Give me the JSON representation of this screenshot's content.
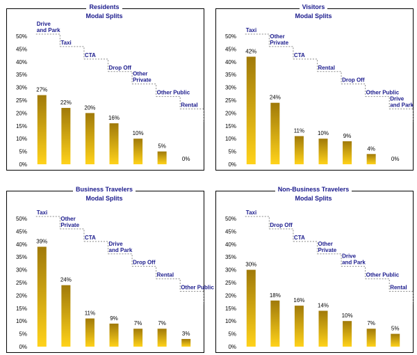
{
  "colors": {
    "bar_top": "#a07a0a",
    "bar_bottom": "#ffd21a",
    "title": "#1a1a8c",
    "step": "#888888"
  },
  "panels": [
    {
      "title1": "Residents",
      "title2": "Modal Splits"
    },
    {
      "title1": "Visitors",
      "title2": "Modal Splits"
    },
    {
      "title1": "Business Travelers",
      "title2": "Modal Splits"
    },
    {
      "title1": "Non-Business Travelers",
      "title2": "Modal Splits"
    }
  ],
  "chart_data": [
    {
      "type": "bar",
      "title": "Residents Modal Splits",
      "categories": [
        "Drive and Park",
        "Taxi",
        "CTA",
        "Drop Off",
        "Other Private",
        "Other Public",
        "Rental"
      ],
      "values": [
        27,
        22,
        20,
        16,
        10,
        5,
        0
      ],
      "value_labels": [
        "27%",
        "22%",
        "20%",
        "16%",
        "10%",
        "5%",
        "0%"
      ],
      "ylim": [
        0,
        50
      ],
      "yticks": [
        "0%",
        "5%",
        "10%",
        "15%",
        "20%",
        "25%",
        "30%",
        "35%",
        "40%",
        "45%",
        "50%"
      ],
      "grid": false
    },
    {
      "type": "bar",
      "title": "Visitors Modal Splits",
      "categories": [
        "Taxi",
        "Other Private",
        "CTA",
        "Rental",
        "Drop Off",
        "Other Public",
        "Drive and Park"
      ],
      "values": [
        42,
        24,
        11,
        10,
        9,
        4,
        0
      ],
      "value_labels": [
        "42%",
        "24%",
        "11%",
        "10%",
        "9%",
        "4%",
        "0%"
      ],
      "ylim": [
        0,
        50
      ],
      "yticks": [
        "0%",
        "5%",
        "10%",
        "15%",
        "20%",
        "25%",
        "30%",
        "35%",
        "40%",
        "45%",
        "50%"
      ],
      "grid": false
    },
    {
      "type": "bar",
      "title": "Business Travelers Modal Splits",
      "categories": [
        "Taxi",
        "Other Private",
        "CTA",
        "Drive and Park",
        "Drop Off",
        "Rental",
        "Other Public"
      ],
      "values": [
        39,
        24,
        11,
        9,
        7,
        7,
        3
      ],
      "value_labels": [
        "39%",
        "24%",
        "11%",
        "9%",
        "7%",
        "7%",
        "3%"
      ],
      "ylim": [
        0,
        50
      ],
      "yticks": [
        "0%",
        "5%",
        "10%",
        "15%",
        "20%",
        "25%",
        "30%",
        "35%",
        "40%",
        "45%",
        "50%"
      ],
      "grid": false
    },
    {
      "type": "bar",
      "title": "Non-Business Travelers Modal Splits",
      "categories": [
        "Taxi",
        "Drop Off",
        "CTA",
        "Other Private",
        "Drive and Park",
        "Other Public",
        "Rental"
      ],
      "values": [
        30,
        18,
        16,
        14,
        10,
        7,
        5
      ],
      "value_labels": [
        "30%",
        "18%",
        "16%",
        "14%",
        "10%",
        "7%",
        "5%"
      ],
      "ylim": [
        0,
        50
      ],
      "yticks": [
        "0%",
        "5%",
        "10%",
        "15%",
        "20%",
        "25%",
        "30%",
        "35%",
        "40%",
        "45%",
        "50%"
      ],
      "grid": false
    }
  ]
}
